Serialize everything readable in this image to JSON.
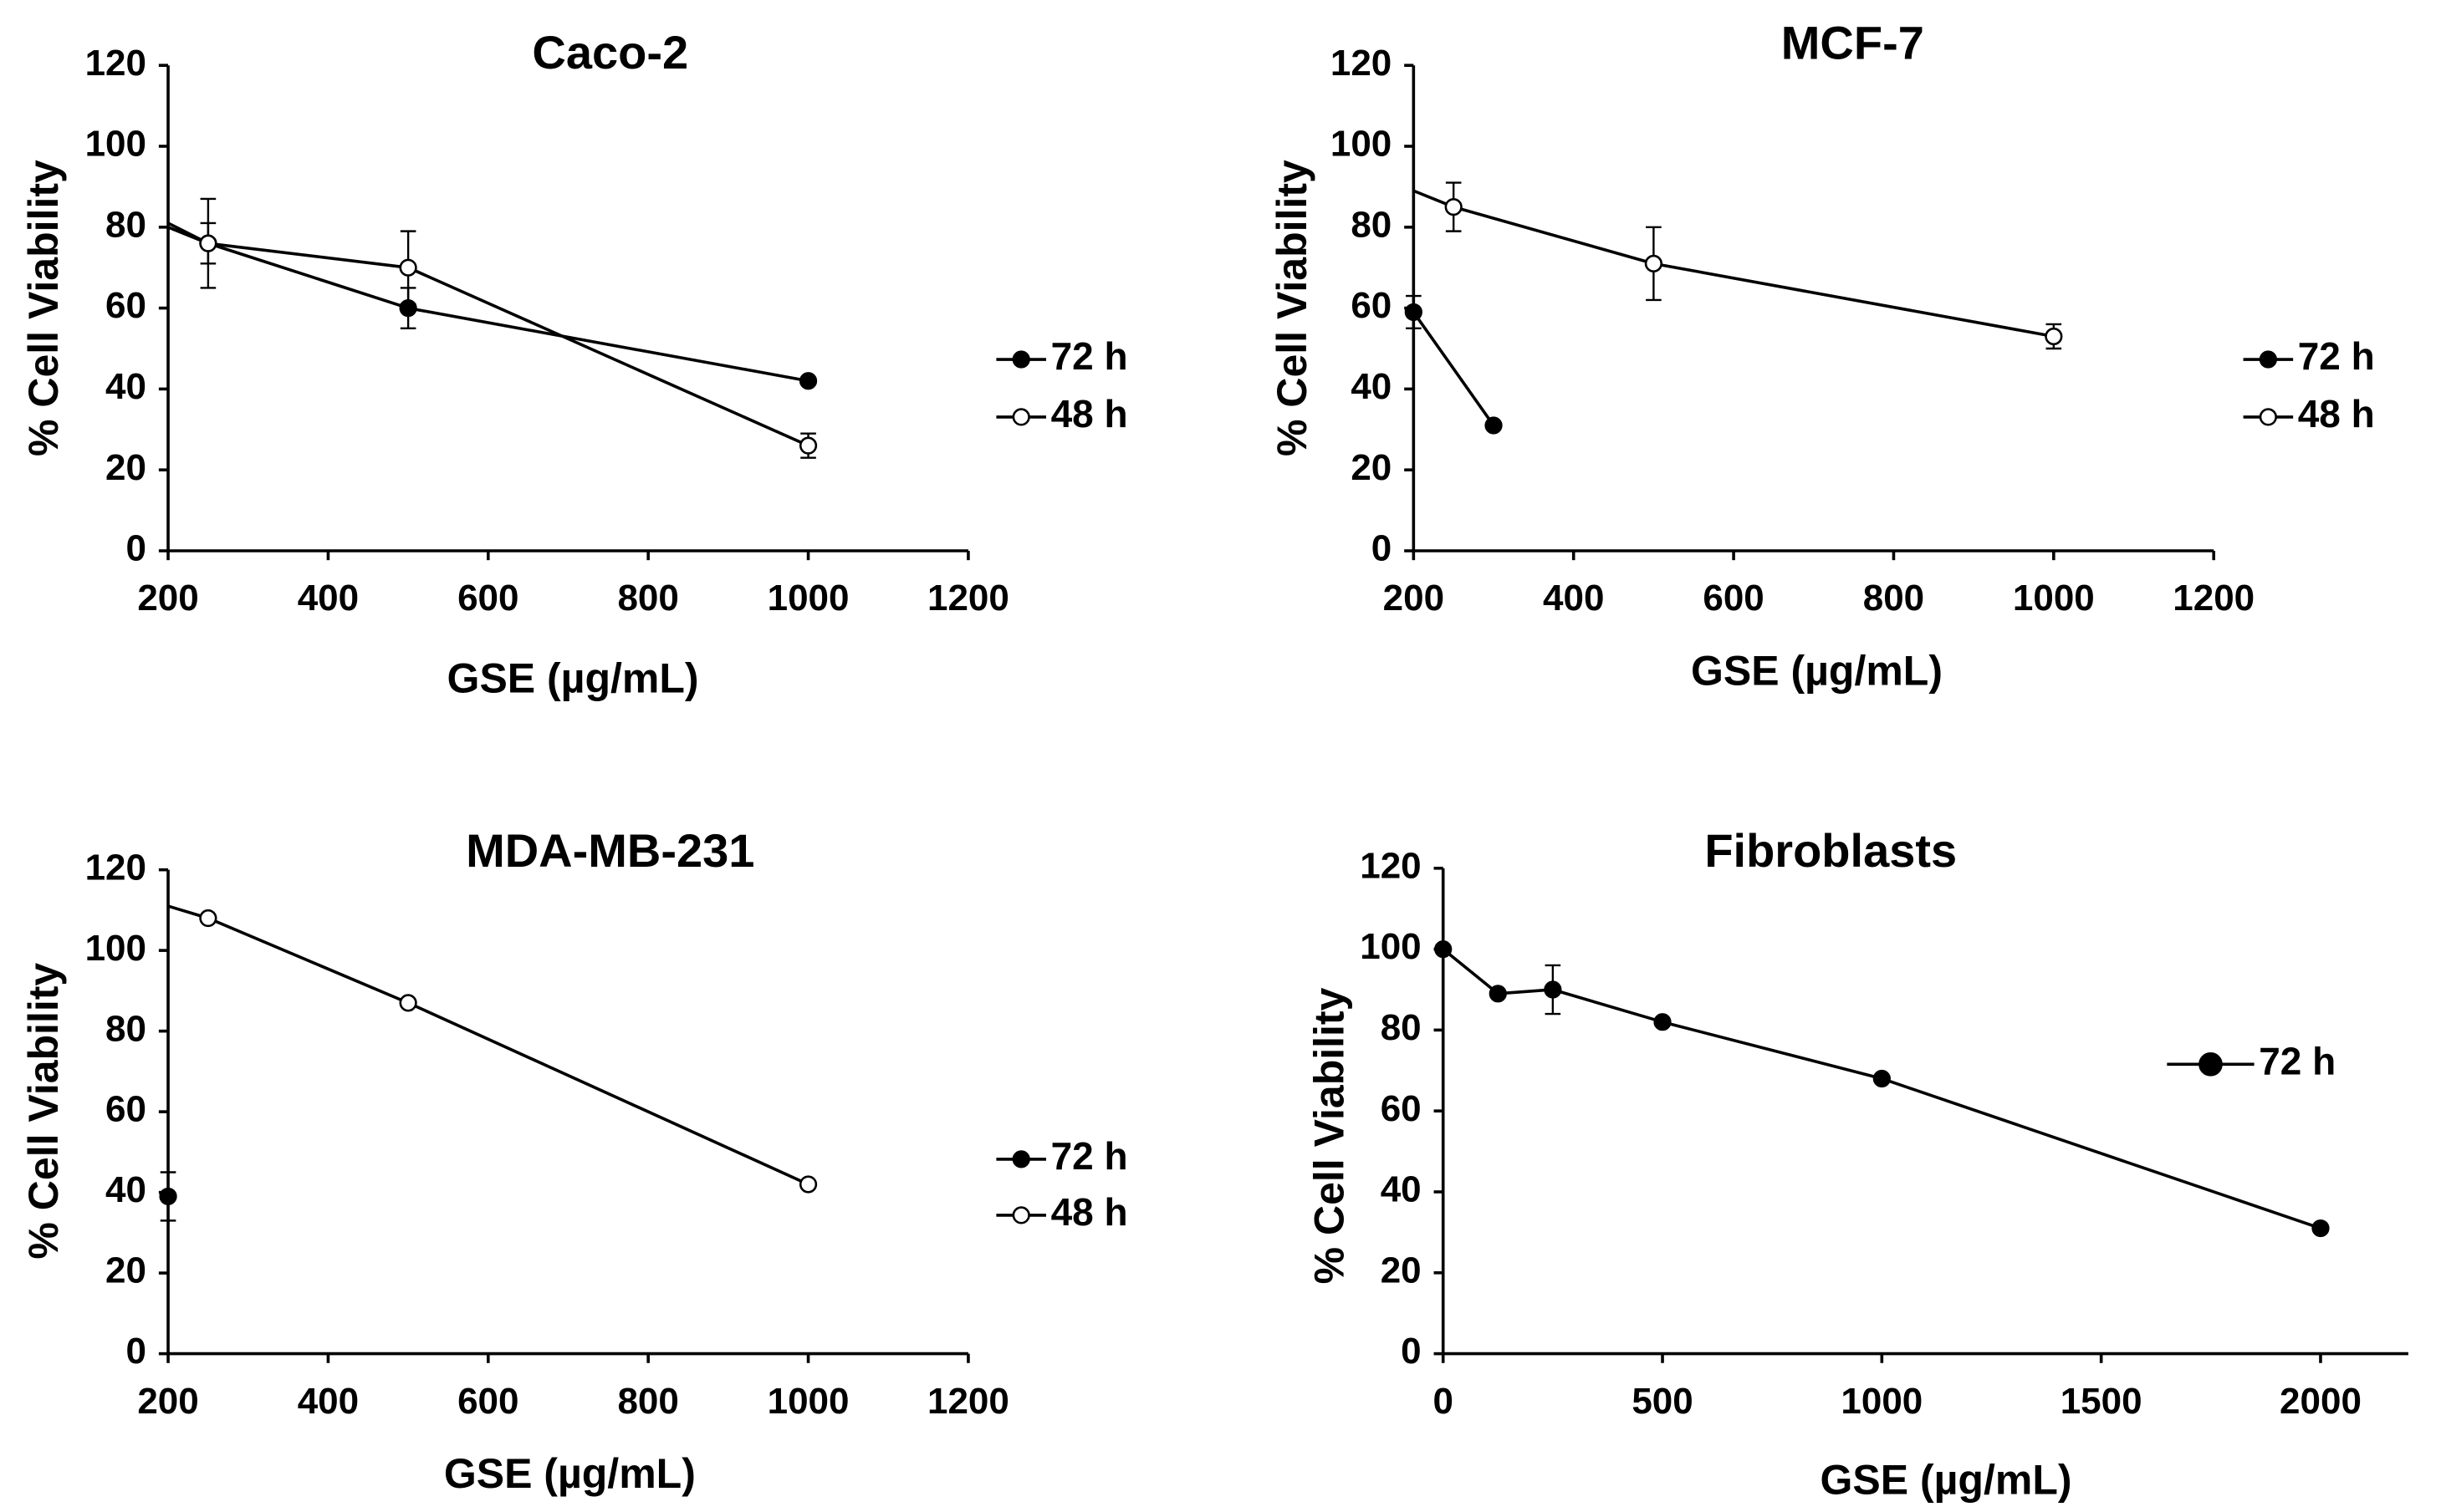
{
  "chart_data": [
    {
      "type": "line",
      "title": "Caco-2",
      "xlabel": "GSE (µg/mL)",
      "ylabel": "% Cell Viability",
      "xlim": [
        200,
        1200
      ],
      "ylim": [
        0,
        120
      ],
      "xticks": [
        "200",
        "400",
        "600",
        "800",
        "1000",
        "1200"
      ],
      "yticks": [
        "0",
        "20",
        "40",
        "60",
        "80",
        "100",
        "120"
      ],
      "grid": false,
      "legend_position": "right",
      "series": [
        {
          "name": "72 h",
          "marker": "filled",
          "x_start": 200,
          "y_start": 80,
          "x": [
            250,
            500,
            1000
          ],
          "y": [
            76,
            60,
            42
          ],
          "err": [
            5,
            5,
            0
          ]
        },
        {
          "name": "48 h",
          "marker": "open",
          "x_start": 200,
          "y_start": 81,
          "x": [
            250,
            500,
            1000
          ],
          "y": [
            76,
            70,
            26
          ],
          "err": [
            11,
            9,
            3
          ]
        }
      ]
    },
    {
      "type": "line",
      "title": "MCF-7",
      "xlabel": "GSE (µg/mL)",
      "ylabel": "% Cell Viability",
      "xlim": [
        200,
        1200
      ],
      "ylim": [
        0,
        120
      ],
      "xticks": [
        "200",
        "400",
        "600",
        "800",
        "1000",
        "1200"
      ],
      "yticks": [
        "0",
        "20",
        "40",
        "60",
        "80",
        "100",
        "120"
      ],
      "grid": false,
      "legend_position": "right",
      "series": [
        {
          "name": "72 h",
          "marker": "filled",
          "x": [
            200,
            300
          ],
          "y": [
            59,
            31
          ],
          "err": [
            4,
            0
          ]
        },
        {
          "name": "48 h",
          "marker": "open",
          "x_start": 200,
          "y_start": 89,
          "x": [
            250,
            500,
            1000
          ],
          "y": [
            85,
            71,
            53
          ],
          "err": [
            6,
            9,
            3
          ]
        }
      ]
    },
    {
      "type": "line",
      "title": "MDA-MB-231",
      "xlabel": "GSE (µg/mL)",
      "ylabel": "% Cell Viability",
      "xlim": [
        200,
        1200
      ],
      "ylim": [
        0,
        120
      ],
      "xticks": [
        "200",
        "400",
        "600",
        "800",
        "1000",
        "1200"
      ],
      "yticks": [
        "0",
        "20",
        "40",
        "60",
        "80",
        "100",
        "120"
      ],
      "grid": false,
      "legend_position": "right",
      "series": [
        {
          "name": "72 h",
          "marker": "filled",
          "x": [
            200
          ],
          "y": [
            39
          ],
          "err": [
            6
          ]
        },
        {
          "name": "48 h",
          "marker": "open",
          "x_start": 200,
          "y_start": 111,
          "x": [
            250,
            500,
            1000
          ],
          "y": [
            108,
            87,
            42
          ],
          "err": [
            0,
            0,
            0
          ]
        }
      ]
    },
    {
      "type": "line",
      "title": "Fibroblasts",
      "xlabel": "GSE (µg/mL)",
      "ylabel": "% Cell Viability",
      "xlim": [
        0,
        2200
      ],
      "ylim": [
        0,
        120
      ],
      "xticks": [
        "0",
        "500",
        "1000",
        "1500",
        "2000"
      ],
      "yticks": [
        "0",
        "20",
        "40",
        "60",
        "80",
        "100",
        "120"
      ],
      "grid": false,
      "legend_position": "right",
      "series": [
        {
          "name": "72 h",
          "marker": "filled",
          "x": [
            0,
            125,
            250,
            500,
            1000,
            2000
          ],
          "y": [
            100,
            89,
            90,
            82,
            68,
            31
          ],
          "err": [
            0,
            0,
            6,
            0,
            0,
            0
          ]
        }
      ]
    }
  ]
}
